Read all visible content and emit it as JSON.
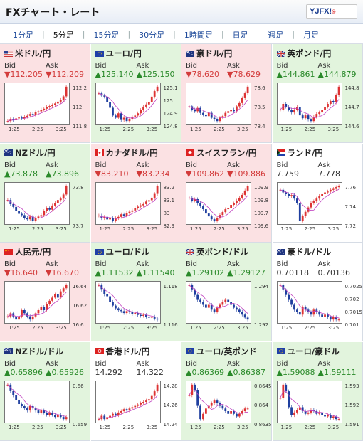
{
  "header": {
    "title": "FXチャート・レート",
    "logo_text": "YJFX!",
    "logo_sub": "®"
  },
  "tabs": [
    "1分足",
    "5分足",
    "15分足",
    "30分足",
    "1時間足",
    "日足",
    "週足",
    "月足"
  ],
  "active_tab": "5分足",
  "labels": {
    "bid": "Bid",
    "ask": "Ask"
  },
  "colors": {
    "down_bg": "#fbe1e3",
    "up_bg": "#e2f4dd",
    "up_text": "#2a8a2a",
    "down_text": "#d33b3b",
    "ma_line": "#c040c0"
  },
  "pairs": [
    {
      "name": "米ドル/円",
      "flag": "flag-usd",
      "dir": "down",
      "bid": "112.205",
      "ask": "112.209",
      "arrow": "▼",
      "yticks": [
        "112.2",
        "112",
        "111.8"
      ],
      "xticks": [
        "1:25",
        "2:25",
        "3:25"
      ],
      "series": [
        111.82,
        111.84,
        111.83,
        111.85,
        111.86,
        111.85,
        111.87,
        111.88,
        111.9,
        111.89,
        111.92,
        111.93,
        111.95,
        111.96,
        111.98,
        111.99,
        112.0,
        112.02,
        112.04,
        112.06,
        112.1,
        112.21
      ]
    },
    {
      "name": "ユーロ/円",
      "flag": "flag-eur",
      "dir": "up",
      "bid": "125.140",
      "ask": "125.150",
      "arrow": "▲",
      "yticks": [
        "125.1",
        "125",
        "124.9",
        "124.8"
      ],
      "xticks": [
        "1:25",
        "2:25",
        "3:25"
      ],
      "series": [
        125.08,
        125.06,
        125.05,
        125.0,
        124.95,
        124.88,
        124.86,
        124.9,
        124.84,
        124.86,
        124.83,
        124.85,
        124.87,
        124.88,
        124.9,
        124.93,
        124.96,
        124.98,
        125.0,
        125.05,
        125.1,
        125.14
      ]
    },
    {
      "name": "豪ドル/円",
      "flag": "flag-aud",
      "dir": "down",
      "bid": "78.620",
      "ask": "78.629",
      "arrow": "▼",
      "yticks": [
        "78.6",
        "78.5",
        "78.4"
      ],
      "xticks": [
        "1:25",
        "2:25",
        "3:25"
      ],
      "series": [
        78.5,
        78.48,
        78.47,
        78.49,
        78.46,
        78.45,
        78.44,
        78.46,
        78.43,
        78.42,
        78.41,
        78.43,
        78.44,
        78.46,
        78.47,
        78.48,
        78.47,
        78.5,
        78.52,
        78.55,
        78.58,
        78.62
      ]
    },
    {
      "name": "英ポンド/円",
      "flag": "flag-gbp",
      "dir": "up",
      "bid": "144.861",
      "ask": "144.879",
      "arrow": "▲",
      "yticks": [
        "144.8",
        "144.7",
        "144.6"
      ],
      "xticks": [
        "1:25",
        "2:25",
        "3:25"
      ],
      "series": [
        144.7,
        144.74,
        144.72,
        144.7,
        144.68,
        144.7,
        144.72,
        144.66,
        144.64,
        144.66,
        144.63,
        144.62,
        144.65,
        144.67,
        144.68,
        144.7,
        144.72,
        144.74,
        144.76,
        144.75,
        144.8,
        144.86
      ]
    },
    {
      "name": "NZドル/円",
      "flag": "flag-nzd",
      "dir": "up",
      "bid": "73.878",
      "ask": "73.896",
      "arrow": "▲",
      "yticks": [
        "73.8",
        "73.7"
      ],
      "xticks": [
        "1:25",
        "2:25",
        "3:25"
      ],
      "series": [
        73.78,
        73.75,
        73.73,
        73.7,
        73.68,
        73.67,
        73.65,
        73.64,
        73.66,
        73.63,
        73.65,
        73.66,
        73.67,
        73.7,
        73.72,
        73.71,
        73.74,
        73.76,
        73.78,
        73.79,
        73.82,
        73.88
      ]
    },
    {
      "name": "カナダドル/円",
      "flag": "flag-cad",
      "dir": "down",
      "bid": "83.210",
      "ask": "83.234",
      "arrow": "▼",
      "yticks": [
        "83.2",
        "83.1",
        "83",
        "82.9"
      ],
      "xticks": [
        "1:25",
        "2:25",
        "3:25"
      ],
      "series": [
        82.98,
        82.96,
        82.97,
        82.95,
        82.96,
        82.94,
        82.96,
        82.97,
        82.99,
        82.98,
        83.0,
        83.01,
        83.02,
        83.04,
        83.05,
        83.06,
        83.07,
        83.09,
        83.1,
        83.12,
        83.15,
        83.21
      ]
    },
    {
      "name": "スイスフラン/円",
      "flag": "flag-chf",
      "dir": "down",
      "bid": "109.862",
      "ask": "109.886",
      "arrow": "▼",
      "yticks": [
        "109.9",
        "109.8",
        "109.7",
        "109.6"
      ],
      "xticks": [
        "1:25",
        "2:25",
        "3:25"
      ],
      "series": [
        109.78,
        109.76,
        109.77,
        109.74,
        109.72,
        109.7,
        109.67,
        109.65,
        109.63,
        109.62,
        109.64,
        109.66,
        109.68,
        109.7,
        109.71,
        109.73,
        109.74,
        109.76,
        109.78,
        109.8,
        109.83,
        109.86
      ]
    },
    {
      "name": "ランド/円",
      "flag": "flag-zar",
      "dir": "flat",
      "bid": "7.759",
      "ask": "7.778",
      "arrow": "",
      "yticks": [
        "7.76",
        "7.74",
        "7.72"
      ],
      "xticks": [
        "1:25",
        "2:25",
        "3:25"
      ],
      "series": [
        7.755,
        7.752,
        7.75,
        7.748,
        7.749,
        7.745,
        7.74,
        7.72,
        7.725,
        7.73,
        7.735,
        7.74,
        7.742,
        7.745,
        7.748,
        7.75,
        7.752,
        7.753,
        7.755,
        7.756,
        7.758,
        7.759
      ]
    },
    {
      "name": "人民元/円",
      "flag": "flag-cny",
      "dir": "down",
      "bid": "16.640",
      "ask": "16.670",
      "arrow": "▼",
      "yticks": [
        "16.64",
        "16.62",
        "16.6"
      ],
      "xticks": [
        "1:25",
        "2:25",
        "3:25"
      ],
      "series": [
        16.59,
        16.595,
        16.59,
        16.585,
        16.59,
        16.6,
        16.595,
        16.59,
        16.585,
        16.59,
        16.595,
        16.6,
        16.605,
        16.6,
        16.61,
        16.615,
        16.62,
        16.625,
        16.62,
        16.63,
        16.635,
        16.64
      ]
    },
    {
      "name": "ユーロ/ドル",
      "flag": "flag-eur",
      "dir": "up",
      "bid": "1.11532",
      "ask": "1.11540",
      "arrow": "▲",
      "yticks": [
        "1.118",
        "1.116"
      ],
      "xticks": [
        "1:25",
        "2:25",
        "3:25"
      ],
      "series": [
        1.119,
        1.1185,
        1.118,
        1.1178,
        1.1172,
        1.1168,
        1.1165,
        1.1163,
        1.1162,
        1.116,
        1.1162,
        1.1161,
        1.1159,
        1.116,
        1.1158,
        1.1157,
        1.1158,
        1.1156,
        1.1155,
        1.1156,
        1.1154,
        1.1153
      ]
    },
    {
      "name": "英ポンド/ドル",
      "flag": "flag-gbp",
      "dir": "up",
      "bid": "1.29102",
      "ask": "1.29127",
      "arrow": "▲",
      "yticks": [
        "1.294",
        "1.292"
      ],
      "xticks": [
        "1:25",
        "2:25",
        "3:25"
      ],
      "series": [
        1.2945,
        1.294,
        1.2935,
        1.293,
        1.2928,
        1.2925,
        1.2922,
        1.2925,
        1.292,
        1.2918,
        1.2922,
        1.2925,
        1.2928,
        1.293,
        1.2928,
        1.2925,
        1.2922,
        1.292,
        1.2918,
        1.2915,
        1.2912,
        1.291
      ]
    },
    {
      "name": "豪ドル/ドル",
      "flag": "flag-aud",
      "dir": "flat",
      "bid": "0.70118",
      "ask": "0.70136",
      "arrow": "",
      "yticks": [
        "0.7025",
        "0.702",
        "0.7015",
        "0.701"
      ],
      "xticks": [
        "1:25",
        "2:25",
        "3:25"
      ],
      "series": [
        0.7026,
        0.7024,
        0.7022,
        0.702,
        0.7018,
        0.7016,
        0.7015,
        0.7014,
        0.7017,
        0.7016,
        0.7015,
        0.7014,
        0.7016,
        0.7015,
        0.7014,
        0.7013,
        0.7014,
        0.7013,
        0.7012,
        0.7013,
        0.7012,
        0.7012
      ]
    },
    {
      "name": "NZドル/ドル",
      "flag": "flag-nzd",
      "dir": "up",
      "bid": "0.65896",
      "ask": "0.65926",
      "arrow": "▲",
      "yticks": [
        "0.66",
        "0.659"
      ],
      "xticks": [
        "1:25",
        "2:25",
        "3:25"
      ],
      "series": [
        0.6605,
        0.6602,
        0.66,
        0.6598,
        0.6596,
        0.6595,
        0.6594,
        0.6593,
        0.6595,
        0.6594,
        0.6593,
        0.6592,
        0.6593,
        0.6592,
        0.6591,
        0.6592,
        0.6591,
        0.659,
        0.6591,
        0.659,
        0.6589,
        0.659
      ]
    },
    {
      "name": "香港ドル/円",
      "flag": "flag-hkd",
      "dir": "flat",
      "bid": "14.292",
      "ask": "14.322",
      "arrow": "",
      "yticks": [
        "14.28",
        "14.26",
        "14.24"
      ],
      "xticks": [
        "1:25",
        "2:25",
        "3:25"
      ],
      "series": [
        14.24,
        14.245,
        14.24,
        14.243,
        14.245,
        14.248,
        14.246,
        14.25,
        14.252,
        14.255,
        14.253,
        14.256,
        14.258,
        14.26,
        14.262,
        14.264,
        14.266,
        14.268,
        14.27,
        14.275,
        14.282,
        14.292
      ]
    },
    {
      "name": "ユーロ/英ポンド",
      "flag": "flag-eur",
      "dir": "up",
      "bid": "0.86369",
      "ask": "0.86387",
      "arrow": "▲",
      "yticks": [
        "0.8645",
        "0.864",
        "0.8635"
      ],
      "xticks": [
        "1:25",
        "2:25",
        "3:25"
      ],
      "series": [
        0.8642,
        0.8646,
        0.8644,
        0.8638,
        0.8633,
        0.8635,
        0.8637,
        0.8638,
        0.8639,
        0.864,
        0.8639,
        0.8638,
        0.8637,
        0.8636,
        0.8635,
        0.8636,
        0.8635,
        0.8634,
        0.8635,
        0.8636,
        0.8637,
        0.8637
      ]
    },
    {
      "name": "ユーロ/豪ドル",
      "flag": "flag-eur",
      "dir": "up",
      "bid": "1.59088",
      "ask": "1.59111",
      "arrow": "▲",
      "yticks": [
        "1.593",
        "1.592",
        "1.591"
      ],
      "xticks": [
        "1:25",
        "2:25",
        "3:25"
      ],
      "series": [
        1.5925,
        1.5935,
        1.593,
        1.5918,
        1.5912,
        1.5914,
        1.5916,
        1.5918,
        1.5915,
        1.5913,
        1.5914,
        1.5916,
        1.5915,
        1.5913,
        1.5914,
        1.5912,
        1.5911,
        1.5912,
        1.591,
        1.5911,
        1.5909,
        1.5909
      ]
    }
  ]
}
